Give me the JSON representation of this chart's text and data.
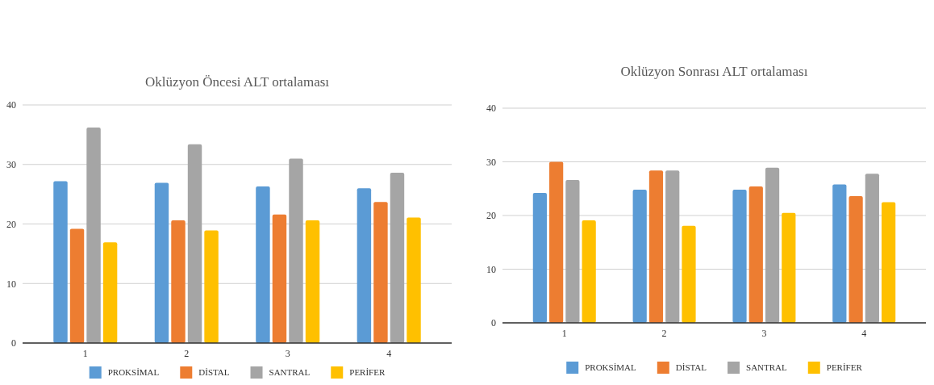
{
  "chart_data": [
    {
      "type": "bar",
      "title": "Oklüzyon Öncesi ALT ortalaması",
      "categories": [
        "1",
        "2",
        "3",
        "4"
      ],
      "ylim": [
        0,
        40
      ],
      "yticks": [
        0,
        10,
        20,
        30,
        40
      ],
      "grid": "y",
      "legend": "bottom",
      "series": [
        {
          "name": "PROKSİMAL",
          "color": "#5b9bd5",
          "values": [
            27.2,
            26.9,
            26.3,
            26.0
          ]
        },
        {
          "name": "DİSTAL",
          "color": "#ed7d31",
          "values": [
            19.2,
            20.6,
            21.6,
            23.7
          ]
        },
        {
          "name": "SANTRAL",
          "color": "#a5a5a5",
          "values": [
            36.2,
            33.4,
            31.0,
            28.6
          ]
        },
        {
          "name": "PERİFER",
          "color": "#ffc000",
          "values": [
            16.9,
            18.9,
            20.6,
            21.1
          ]
        }
      ]
    },
    {
      "type": "bar",
      "title": "Oklüzyon Sonrası ALT ortalaması",
      "categories": [
        "1",
        "2",
        "3",
        "4"
      ],
      "ylim": [
        0,
        40
      ],
      "yticks": [
        0,
        10,
        20,
        30,
        40
      ],
      "grid": "y",
      "legend": "bottom",
      "series": [
        {
          "name": "PROKSİMAL",
          "color": "#5b9bd5",
          "values": [
            24.2,
            24.8,
            24.8,
            25.8
          ]
        },
        {
          "name": "DİSTAL",
          "color": "#ed7d31",
          "values": [
            30.0,
            28.4,
            25.4,
            23.6
          ]
        },
        {
          "name": "SANTRAL",
          "color": "#a5a5a5",
          "values": [
            26.6,
            28.4,
            28.9,
            27.8
          ]
        },
        {
          "name": "PERİFER",
          "color": "#ffc000",
          "values": [
            19.1,
            18.1,
            20.5,
            22.5
          ]
        }
      ]
    }
  ]
}
